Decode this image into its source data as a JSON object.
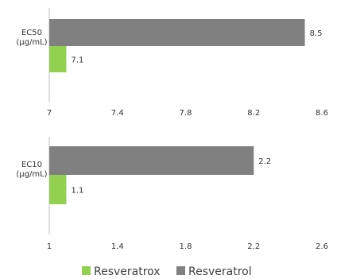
{
  "chart_data": [
    {
      "type": "bar",
      "orientation": "horizontal",
      "category_label": [
        "EC50",
        "(µg/mL)"
      ],
      "series": [
        {
          "name": "Resveratrol",
          "values": [
            8.5
          ],
          "value_labels": [
            "8.5"
          ]
        },
        {
          "name": "Resveratrox",
          "values": [
            7.1
          ],
          "value_labels": [
            "7.1"
          ]
        }
      ],
      "xlim": [
        7,
        8.6
      ],
      "ticks": [
        "7",
        "7.4",
        "7.8",
        "8.2",
        "8.6"
      ]
    },
    {
      "type": "bar",
      "orientation": "horizontal",
      "category_label": [
        "EC10",
        "(µg/mL)"
      ],
      "series": [
        {
          "name": "Resveratrol",
          "values": [
            2.2
          ],
          "value_labels": [
            "2.2"
          ]
        },
        {
          "name": "Resveratrox",
          "values": [
            1.1
          ],
          "value_labels": [
            "1.1"
          ]
        }
      ],
      "xlim": [
        1,
        2.6
      ],
      "ticks": [
        "1",
        "1.4",
        "1.8",
        "2.2",
        "2.6"
      ]
    }
  ],
  "legend": [
    {
      "label": "Resveratrox",
      "color": "#92d050"
    },
    {
      "label": "Resveratrol",
      "color": "#808080"
    }
  ],
  "colors": {
    "Resveratrol": "#808080",
    "Resveratrox": "#92d050",
    "axis": "#bfbfbf"
  }
}
